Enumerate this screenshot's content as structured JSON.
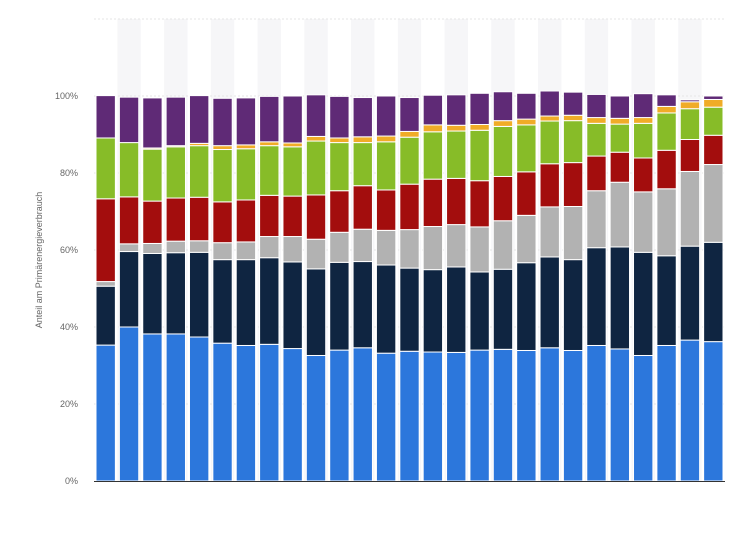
{
  "chart_data": {
    "type": "bar",
    "stacked": true,
    "ylabel": "Anteil am Primärenergieverbrauch",
    "ylim": [
      0,
      120
    ],
    "yticks": [
      0,
      20,
      40,
      60,
      80,
      100
    ],
    "ytick_suffix": "%",
    "grid": true,
    "bar_count": 27,
    "series": [
      {
        "color": "#2c77dc",
        "values": [
          35.3,
          40.0,
          38.2,
          38.2,
          37.4,
          35.8,
          35.2,
          35.5,
          34.4,
          32.6,
          34.0,
          34.6,
          33.2,
          33.7,
          33.5,
          33.4,
          34.0,
          34.2,
          33.9,
          34.6,
          33.9,
          35.2,
          34.3,
          32.6,
          35.2,
          36.6,
          36.2
        ]
      },
      {
        "color": "#0f2541",
        "values": [
          15.3,
          19.6,
          20.9,
          21.1,
          22.0,
          21.7,
          22.3,
          22.5,
          22.5,
          22.5,
          22.8,
          22.4,
          22.9,
          21.6,
          21.4,
          22.2,
          20.3,
          20.8,
          22.8,
          23.6,
          23.6,
          25.4,
          26.5,
          26.8,
          23.3,
          24.4,
          25.8
        ]
      },
      {
        "color": "#b2b2b2",
        "values": [
          1.2,
          2.0,
          2.6,
          3.0,
          3.0,
          4.4,
          4.6,
          5.5,
          6.6,
          7.7,
          7.8,
          8.4,
          9.0,
          10.0,
          11.2,
          11.0,
          11.7,
          12.6,
          12.3,
          13.0,
          13.8,
          14.8,
          16.8,
          15.7,
          17.4,
          19.4,
          20.2
        ]
      },
      {
        "color": "#a30d0d",
        "values": [
          21.5,
          12.2,
          11.0,
          11.2,
          11.3,
          10.6,
          10.9,
          10.7,
          10.5,
          11.5,
          10.8,
          11.3,
          10.5,
          11.8,
          12.3,
          12.0,
          12.0,
          11.5,
          11.3,
          11.2,
          11.4,
          9.0,
          7.8,
          8.8,
          10.0,
          8.3,
          7.6
        ]
      },
      {
        "color": "#87bc28",
        "values": [
          15.8,
          14.1,
          13.5,
          13.3,
          13.4,
          13.6,
          13.3,
          12.9,
          12.8,
          14.0,
          12.5,
          11.2,
          12.5,
          12.2,
          12.3,
          12.3,
          13.1,
          13.0,
          12.2,
          11.1,
          10.9,
          8.5,
          7.3,
          9.0,
          9.7,
          8.0,
          7.3
        ]
      },
      {
        "color": "#f0ac27",
        "values": [
          0.0,
          0.0,
          0.3,
          0.3,
          0.6,
          1.0,
          1.0,
          1.0,
          1.0,
          1.2,
          1.2,
          1.5,
          1.5,
          1.5,
          1.8,
          1.5,
          1.5,
          1.5,
          1.5,
          1.3,
          1.4,
          1.5,
          1.5,
          1.5,
          1.7,
          1.8,
          2.0
        ]
      },
      {
        "color": "#5f2a76",
        "values": [
          11.0,
          11.8,
          13.0,
          12.6,
          12.4,
          12.3,
          12.2,
          11.8,
          12.2,
          10.8,
          10.8,
          10.2,
          10.4,
          8.8,
          7.7,
          7.9,
          8.1,
          7.5,
          6.7,
          6.5,
          6.0,
          6.0,
          5.8,
          6.2,
          3.0,
          0.5,
          0.9
        ]
      }
    ]
  }
}
